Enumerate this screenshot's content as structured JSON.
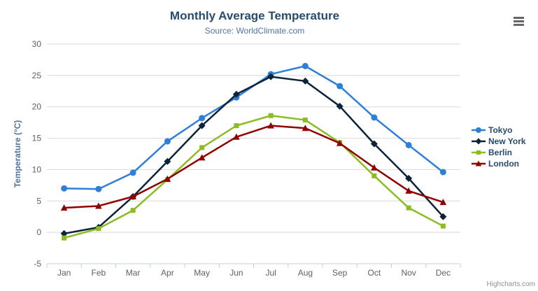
{
  "chart_data": {
    "type": "line",
    "title": "Monthly Average Temperature",
    "subtitle": "Source: WorldClimate.com",
    "categories": [
      "Jan",
      "Feb",
      "Mar",
      "Apr",
      "May",
      "Jun",
      "Jul",
      "Aug",
      "Sep",
      "Oct",
      "Nov",
      "Dec"
    ],
    "xlabel": "",
    "ylabel": "Temperature (°C)",
    "ylim": [
      -5,
      30
    ],
    "ytick_step": 5,
    "grid": true,
    "legend_position": "right",
    "series": [
      {
        "name": "Tokyo",
        "color": "#2f7ed8",
        "marker": "circle",
        "values": [
          7.0,
          6.9,
          9.5,
          14.5,
          18.2,
          21.5,
          25.2,
          26.5,
          23.3,
          18.3,
          13.9,
          9.6
        ]
      },
      {
        "name": "New York",
        "color": "#0d233a",
        "marker": "diamond",
        "values": [
          -0.2,
          0.8,
          5.7,
          11.3,
          17.0,
          22.0,
          24.8,
          24.1,
          20.1,
          14.1,
          8.6,
          2.5
        ]
      },
      {
        "name": "Berlin",
        "color": "#8bbc21",
        "marker": "square",
        "values": [
          -0.9,
          0.6,
          3.5,
          8.4,
          13.5,
          17.0,
          18.6,
          17.9,
          14.3,
          9.0,
          3.9,
          1.0
        ]
      },
      {
        "name": "London",
        "color": "#910000",
        "marker": "triangle",
        "values": [
          3.9,
          4.2,
          5.7,
          8.5,
          11.9,
          15.2,
          17.0,
          16.6,
          14.2,
          10.3,
          6.6,
          4.8
        ]
      }
    ]
  },
  "credits": "Highcharts.com",
  "export_menu_icon": "hamburger-menu-icon",
  "colors": {
    "title_color": "#274b6d",
    "subtitle_color": "#4d759e",
    "axis_title_color": "#4d759e",
    "axis_label_color": "#606060",
    "grid_color": "#d8d8d8",
    "axis_line_color": "#c0d0e0",
    "legend_text_color": "#274b6d",
    "credits_color": "#909090",
    "menu_icon_color": "#666666",
    "background": "#ffffff"
  }
}
